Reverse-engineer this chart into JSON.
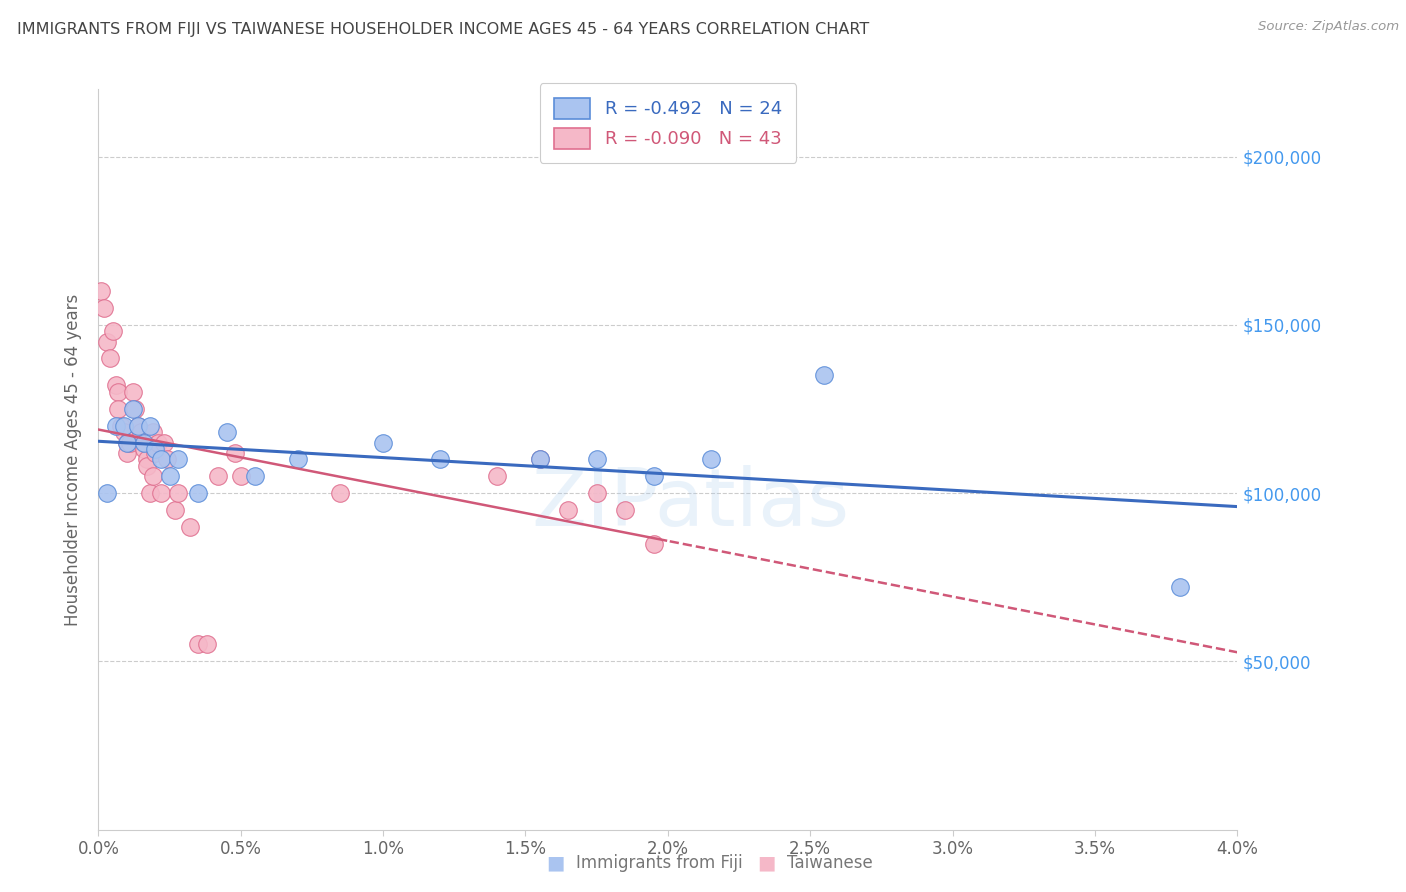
{
  "title": "IMMIGRANTS FROM FIJI VS TAIWANESE HOUSEHOLDER INCOME AGES 45 - 64 YEARS CORRELATION CHART",
  "source": "Source: ZipAtlas.com",
  "ylabel": "Householder Income Ages 45 - 64 years",
  "xlabel_ticks": [
    "0.0%",
    "0.5%",
    "1.0%",
    "1.5%",
    "2.0%",
    "2.5%",
    "3.0%",
    "3.5%",
    "4.0%"
  ],
  "xlabel_vals": [
    0.0,
    0.5,
    1.0,
    1.5,
    2.0,
    2.5,
    3.0,
    3.5,
    4.0
  ],
  "ytick_vals": [
    0,
    50000,
    100000,
    150000,
    200000
  ],
  "ytick_labels": [
    "",
    "$50,000",
    "$100,000",
    "$150,000",
    "$200,000"
  ],
  "xlim": [
    0.0,
    4.0
  ],
  "ylim": [
    0,
    220000
  ],
  "fiji_R": -0.492,
  "fiji_N": 24,
  "taiwanese_R": -0.09,
  "taiwanese_N": 43,
  "fiji_color": "#aac4f0",
  "fiji_edge_color": "#5b8dd9",
  "fiji_line_color": "#3a6abf",
  "taiwanese_color": "#f5b8c8",
  "taiwanese_edge_color": "#e07090",
  "taiwanese_line_color": "#d05878",
  "legend_label_fiji": "Immigrants from Fiji",
  "legend_label_taiwanese": "Taiwanese",
  "watermark": "ZIPatlas",
  "fiji_scatter_x": [
    0.03,
    0.06,
    0.09,
    0.1,
    0.12,
    0.14,
    0.16,
    0.18,
    0.2,
    0.22,
    0.25,
    0.28,
    0.35,
    0.45,
    0.55,
    0.7,
    1.0,
    1.2,
    1.55,
    1.75,
    1.95,
    2.15,
    2.55,
    3.8
  ],
  "fiji_scatter_y": [
    100000,
    120000,
    120000,
    115000,
    125000,
    120000,
    115000,
    120000,
    113000,
    110000,
    105000,
    110000,
    100000,
    118000,
    105000,
    110000,
    115000,
    110000,
    110000,
    110000,
    105000,
    110000,
    135000,
    72000
  ],
  "taiwanese_scatter_x": [
    0.01,
    0.02,
    0.03,
    0.04,
    0.05,
    0.06,
    0.07,
    0.07,
    0.08,
    0.09,
    0.1,
    0.1,
    0.11,
    0.12,
    0.13,
    0.14,
    0.15,
    0.16,
    0.17,
    0.17,
    0.18,
    0.19,
    0.19,
    0.2,
    0.21,
    0.22,
    0.23,
    0.24,
    0.27,
    0.28,
    0.32,
    0.35,
    0.38,
    0.42,
    0.48,
    0.5,
    0.85,
    1.4,
    1.55,
    1.65,
    1.75,
    1.85,
    1.95
  ],
  "taiwanese_scatter_y": [
    160000,
    155000,
    145000,
    140000,
    148000,
    132000,
    130000,
    125000,
    120000,
    118000,
    115000,
    112000,
    115000,
    130000,
    125000,
    120000,
    118000,
    113000,
    110000,
    108000,
    100000,
    105000,
    118000,
    112000,
    115000,
    100000,
    115000,
    110000,
    95000,
    100000,
    90000,
    55000,
    55000,
    105000,
    112000,
    105000,
    100000,
    105000,
    110000,
    95000,
    100000,
    95000,
    85000
  ]
}
